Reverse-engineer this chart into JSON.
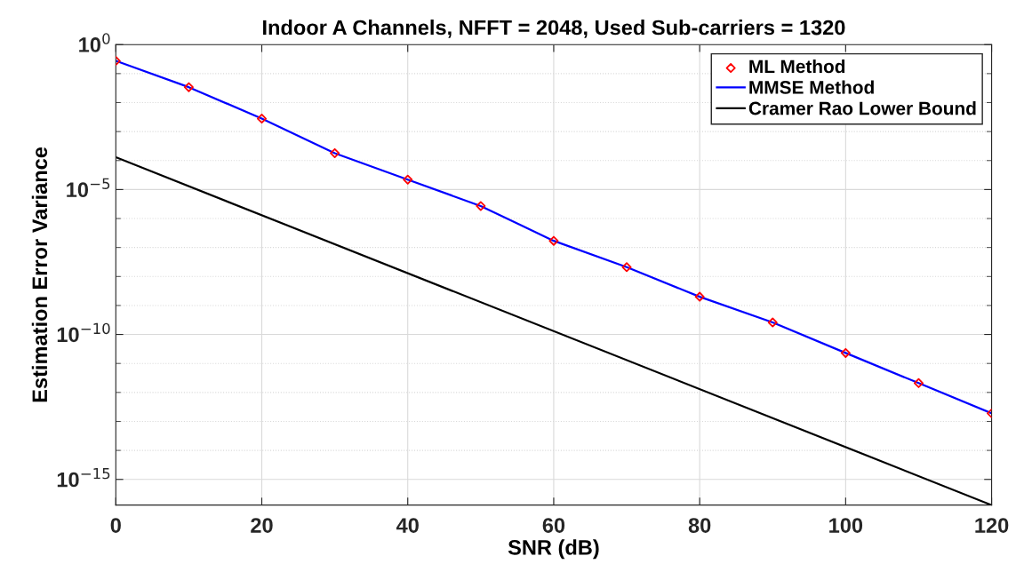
{
  "chart_data": {
    "type": "line",
    "title": "Indoor A Channels, NFFT = 2048, Used Sub-carriers = 1320",
    "xlabel": "SNR (dB)",
    "ylabel": "Estimation Error Variance",
    "log": "y",
    "grid": true,
    "legend": "top right",
    "xlim": [
      0,
      120
    ],
    "xticks": [
      0,
      20,
      40,
      60,
      80,
      100,
      120
    ],
    "ylim": [
      1.3e-16,
      1
    ],
    "yticks": [
      {
        "value": 1,
        "label": "10$^{0}$"
      },
      {
        "value": 1e-05,
        "label": "10$^{−5}$"
      },
      {
        "value": 1e-10,
        "label": "10$^{−10}$"
      },
      {
        "value": 1e-15,
        "label": "10$^{−15}$"
      }
    ],
    "series": [
      {
        "name": "ML Method",
        "type": "scatter",
        "marker": "diamond",
        "color": "#ff0000",
        "x": [
          0,
          10,
          20,
          30,
          40,
          50,
          60,
          70,
          80,
          90,
          100,
          110,
          120
        ],
        "values": [
          0.275,
          0.034,
          0.0028,
          0.00018,
          2.2e-05,
          2.7e-06,
          1.7e-07,
          2.1e-08,
          2e-09,
          2.6e-10,
          2.3e-11,
          2.1e-12,
          1.9e-13
        ]
      },
      {
        "name": "MMSE Method",
        "color": "#0000ff",
        "x": [
          0,
          10,
          20,
          30,
          40,
          50,
          60,
          70,
          80,
          90,
          100,
          110,
          120
        ],
        "values": [
          0.275,
          0.034,
          0.0028,
          0.00018,
          2.2e-05,
          2.7e-06,
          1.7e-07,
          2.1e-08,
          2e-09,
          2.6e-10,
          2.3e-11,
          2.1e-12,
          1.9e-13
        ]
      },
      {
        "name": "Cramer Rao Lower Bound",
        "color": "#000000",
        "x": [
          0,
          120
        ],
        "values": [
          0.00013,
          1.3e-16
        ]
      }
    ]
  }
}
